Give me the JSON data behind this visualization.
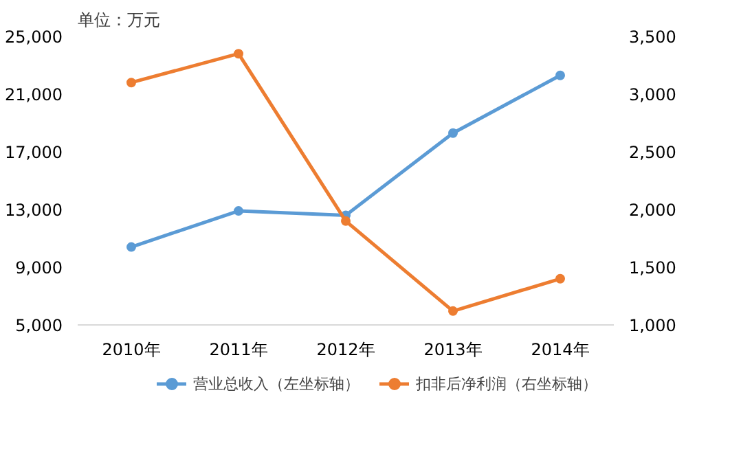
{
  "chart_data": {
    "type": "line",
    "ylabel": "单位：万元",
    "categories": [
      "2010年",
      "2011年",
      "2012年",
      "2013年",
      "2014年"
    ],
    "series": [
      {
        "name": "营业总收入（左坐标轴）",
        "color": "#5b9bd5",
        "values": [
          10400,
          12900,
          12600,
          18300,
          22300
        ]
      },
      {
        "name": "扣非后净利润（右坐标轴）",
        "color": "#ed7d31",
        "values": [
          3100,
          3350,
          1900,
          1120,
          1400
        ],
        "axis": "y2"
      }
    ],
    "ylim": [
      5000,
      25000
    ],
    "yticks": [
      {
        "value": 5000,
        "label": "5,000"
      },
      {
        "value": 9000,
        "label": "9,000"
      },
      {
        "value": 13000,
        "label": "13,000"
      },
      {
        "value": 17000,
        "label": "17,000"
      },
      {
        "value": 21000,
        "label": "21,000"
      },
      {
        "value": 25000,
        "label": "25,000"
      }
    ],
    "y2lim": [
      1000,
      3500
    ],
    "y2ticks": [
      {
        "value": 1000,
        "label": "1,000"
      },
      {
        "value": 1500,
        "label": "1,500"
      },
      {
        "value": 2000,
        "label": "2,000"
      },
      {
        "value": 2500,
        "label": "2,500"
      },
      {
        "value": 3000,
        "label": "3,000"
      },
      {
        "value": 3500,
        "label": "3,500"
      }
    ],
    "grid": false,
    "legend": "bottom",
    "marker": "circle",
    "line_style": "solid"
  }
}
